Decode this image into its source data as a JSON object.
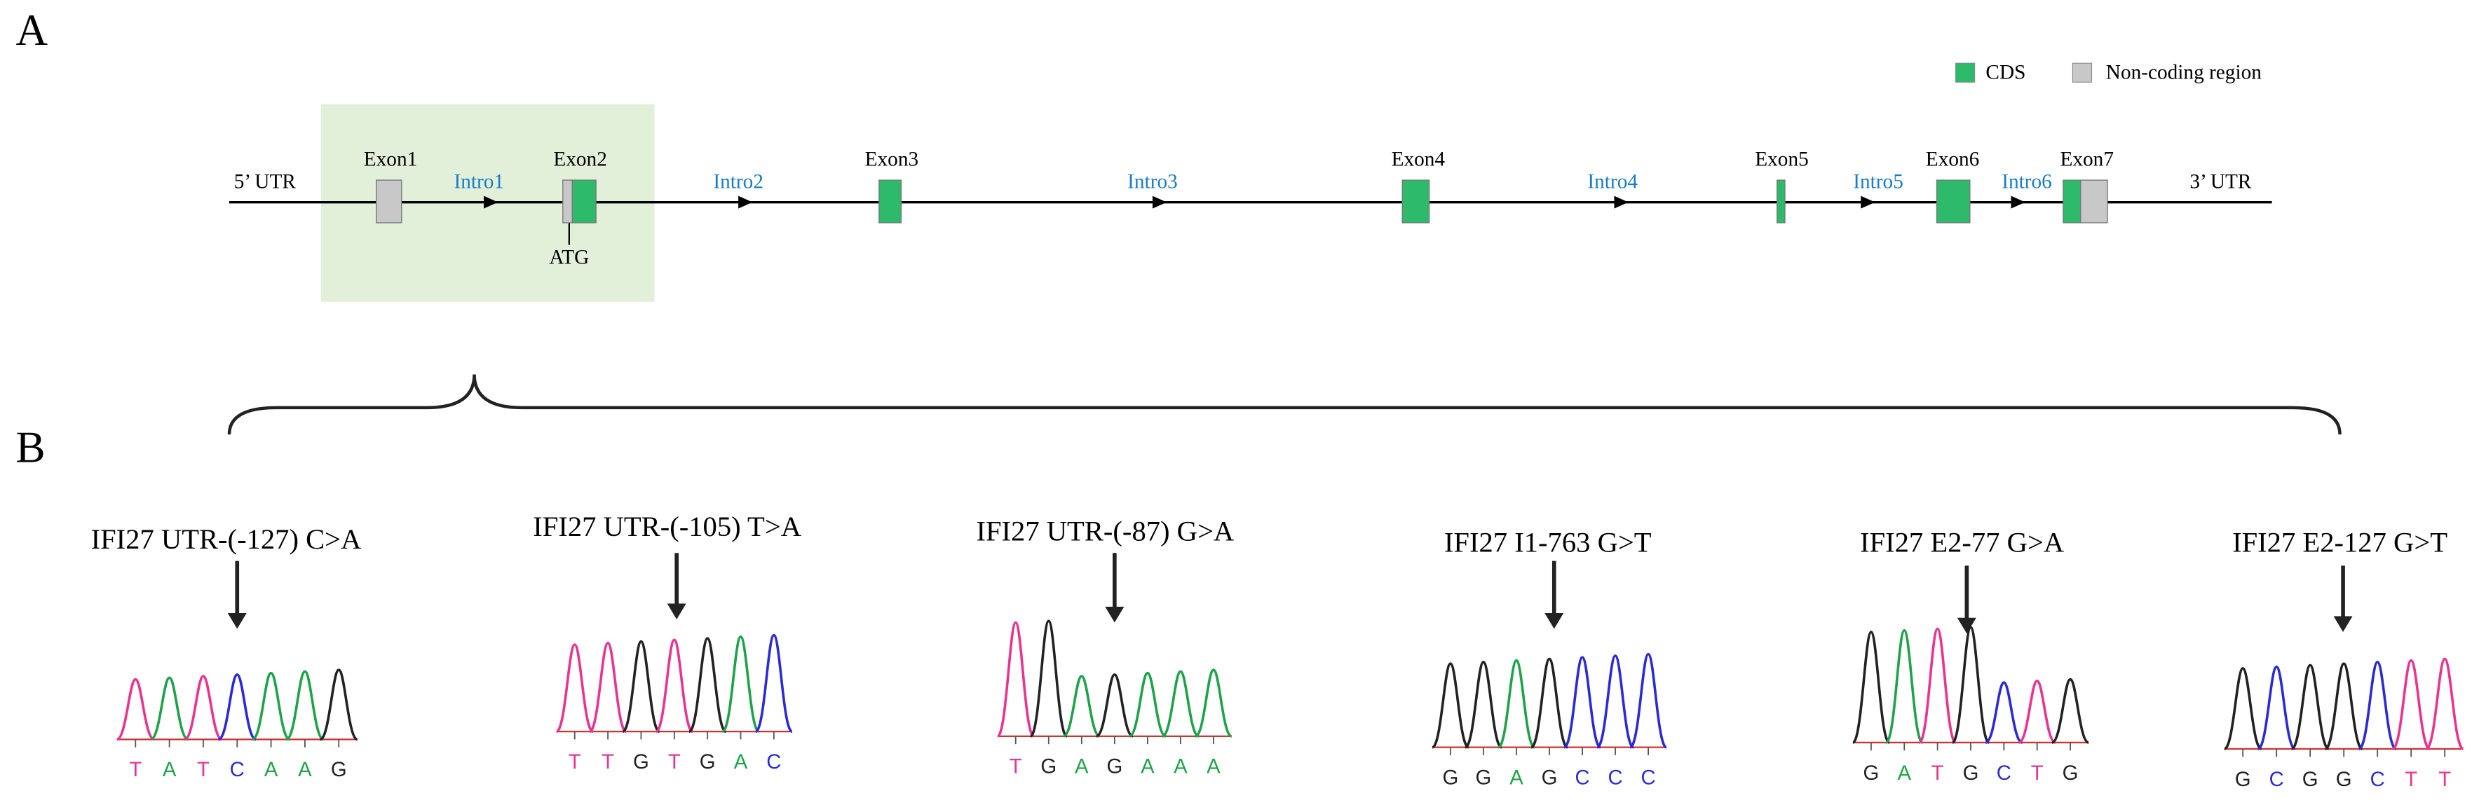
{
  "panel_a": {
    "label": "A",
    "legend": [
      {
        "label": "CDS",
        "color": "#2dbb6b"
      },
      {
        "label": "Non-coding region",
        "color": "#c8c8c8"
      }
    ],
    "utr5": "5’ UTR",
    "utr3": "3’ UTR",
    "atg": "ATG",
    "exons": [
      "Exon1",
      "Exon2",
      "Exon3",
      "Exon4",
      "Exon5",
      "Exon6",
      "Exon7"
    ],
    "introns": [
      "Intro1",
      "Intro2",
      "Intro3",
      "Intro4",
      "Intro5",
      "Intro6"
    ]
  },
  "panel_b": {
    "label": "B",
    "traces": [
      {
        "title": "IFI27 UTR-(-127) C>A",
        "bases": [
          "T",
          "A",
          "T",
          "C",
          "A",
          "A",
          "G"
        ]
      },
      {
        "title": "IFI27 UTR-(-105) T>A",
        "bases": [
          "T",
          "T",
          "G",
          "T",
          "G",
          "A",
          "C"
        ]
      },
      {
        "title": "IFI27 UTR-(-87) G>A",
        "bases": [
          "T",
          "G",
          "A",
          "G",
          "A",
          "A",
          "A"
        ]
      },
      {
        "title": "IFI27 I1-763 G>T",
        "bases": [
          "G",
          "G",
          "A",
          "G",
          "C",
          "C",
          "C"
        ]
      },
      {
        "title": "IFI27 E2-77 G>A",
        "bases": [
          "G",
          "A",
          "T",
          "G",
          "C",
          "T",
          "G"
        ]
      },
      {
        "title": "IFI27 E2-127 G>T",
        "bases": [
          "G",
          "C",
          "G",
          "G",
          "C",
          "T",
          "T"
        ]
      }
    ]
  }
}
